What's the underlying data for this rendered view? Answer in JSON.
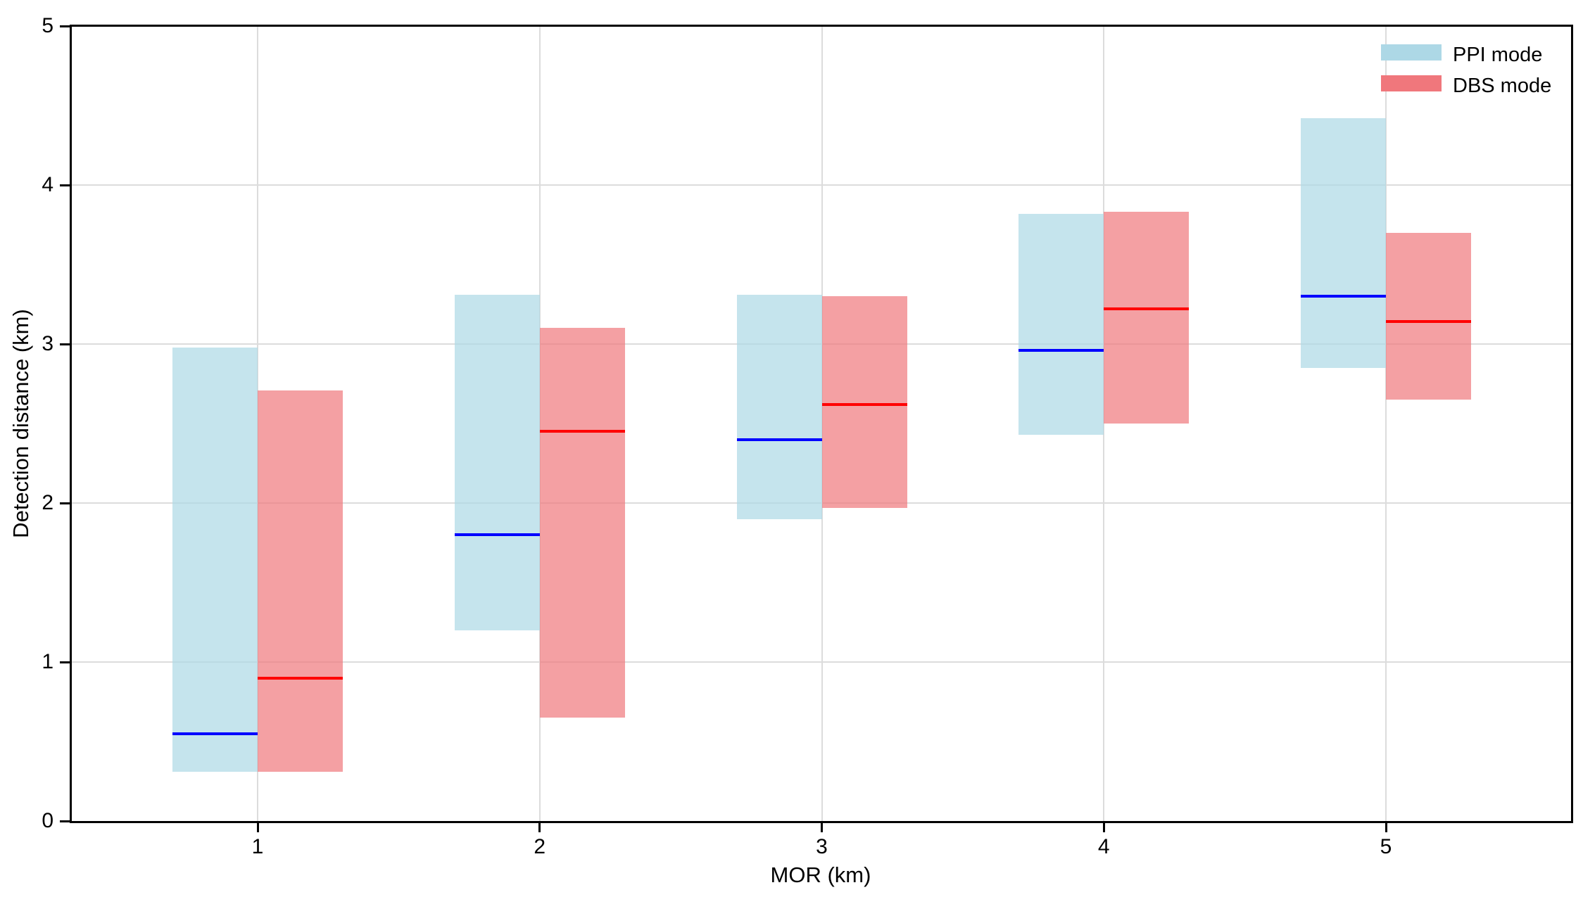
{
  "chart_data": {
    "type": "bar",
    "subtype": "floating-range-boxes-with-median",
    "title": "",
    "xlabel": "MOR (km)",
    "ylabel": "Detection distance (km)",
    "categories": [
      1,
      2,
      3,
      4,
      5
    ],
    "xtick_labels": [
      "1",
      "2",
      "3",
      "4",
      "5"
    ],
    "ytick_labels": [
      "0",
      "1",
      "2",
      "3",
      "4",
      "5"
    ],
    "yticks": [
      0,
      1,
      2,
      3,
      4,
      5
    ],
    "ylim": [
      0,
      5
    ],
    "grid": true,
    "grid_color": "#dcdcdc",
    "legend_position": "upper right",
    "series": [
      {
        "name": "PPI mode",
        "fill_color": "#ADD8E6",
        "fill_opacity": 0.7,
        "median_color": "#0000FF",
        "low": [
          0.31,
          1.2,
          1.9,
          2.43,
          2.85
        ],
        "median": [
          0.55,
          1.8,
          2.4,
          2.96,
          3.3
        ],
        "high": [
          2.98,
          3.31,
          3.31,
          3.82,
          4.42
        ]
      },
      {
        "name": "DBS mode",
        "fill_color": "#F0777C",
        "fill_opacity": 0.7,
        "median_color": "#FF0000",
        "low": [
          0.31,
          0.65,
          1.97,
          2.5,
          2.65
        ],
        "median": [
          0.9,
          2.45,
          2.62,
          3.22,
          3.14
        ],
        "high": [
          2.71,
          3.1,
          3.3,
          3.83,
          3.7
        ]
      }
    ]
  }
}
